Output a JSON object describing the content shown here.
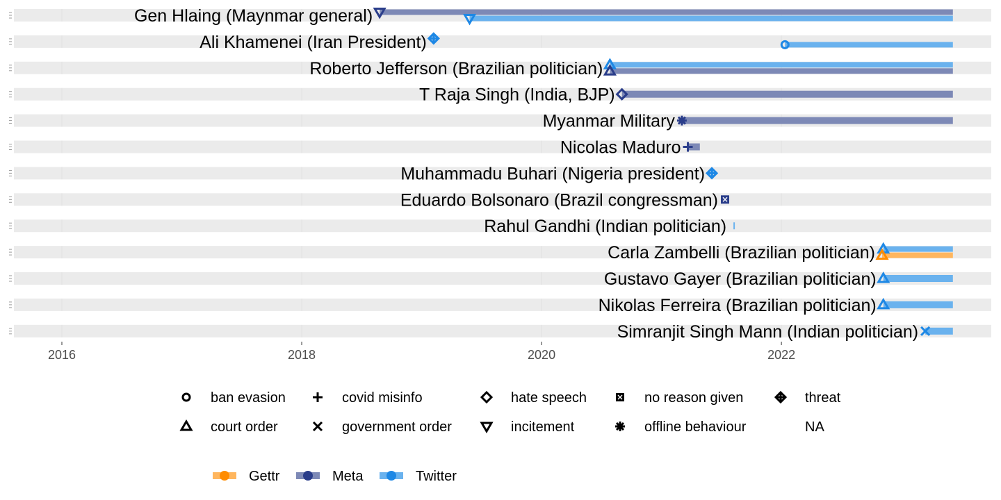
{
  "chart_data": {
    "type": "timeline",
    "x_range": [
      2015.6,
      2023.75
    ],
    "x_ticks": [
      "2016",
      "2018",
      "2020",
      "2022"
    ],
    "end": 2023.43,
    "platforms": [
      {
        "name": "Gettr",
        "color": "#FF8C00",
        "bar_color": "#FFB65E"
      },
      {
        "name": "Meta",
        "color": "#2A3D8A",
        "bar_color": "#7D89B6"
      },
      {
        "name": "Twitter",
        "color": "#1E88E5",
        "bar_color": "#6AB2EE"
      }
    ],
    "reasons": [
      {
        "name": "ban evasion",
        "shape": "circle"
      },
      {
        "name": "covid misinfo",
        "shape": "plus"
      },
      {
        "name": "hate speech",
        "shape": "diamond"
      },
      {
        "name": "no reason given",
        "shape": "boxx"
      },
      {
        "name": "threat",
        "shape": "diamondplus"
      },
      {
        "name": "court order",
        "shape": "triangle"
      },
      {
        "name": "government order",
        "shape": "cross"
      },
      {
        "name": "incitement",
        "shape": "triangledown"
      },
      {
        "name": "offline behaviour",
        "shape": "star"
      },
      {
        "name": "NA",
        "shape": "none"
      }
    ],
    "rows": [
      {
        "name": "Gen Hlaing (Maynmar general)",
        "events": [
          {
            "platform": "Meta",
            "start": 2018.65,
            "end": 2023.43,
            "reason": "incitement"
          },
          {
            "platform": "Twitter",
            "start": 2019.4,
            "end": 2023.43,
            "reason": "incitement"
          }
        ]
      },
      {
        "name": "Ali Khamenei (Iran President)",
        "events": [
          {
            "platform": "Twitter",
            "start": 2019.1,
            "end": 2019.1,
            "reason": "threat"
          },
          {
            "platform": "Twitter",
            "start": 2022.03,
            "end": 2023.43,
            "reason": "ban evasion"
          }
        ]
      },
      {
        "name": "Roberto Jefferson (Brazilian politician)",
        "events": [
          {
            "platform": "Twitter",
            "start": 2020.57,
            "end": 2023.43,
            "reason": "court order"
          },
          {
            "platform": "Meta",
            "start": 2020.57,
            "end": 2023.43,
            "reason": "court order"
          }
        ]
      },
      {
        "name": "T Raja Singh (India, BJP)",
        "events": [
          {
            "platform": "Meta",
            "start": 2020.67,
            "end": 2023.43,
            "reason": "hate speech"
          }
        ]
      },
      {
        "name": "Myanmar Military",
        "events": [
          {
            "platform": "Meta",
            "start": 2021.17,
            "end": 2023.43,
            "reason": "offline behaviour"
          }
        ]
      },
      {
        "name": "Nicolas Maduro",
        "events": [
          {
            "platform": "Meta",
            "start": 2021.22,
            "end": 2021.32,
            "reason": "covid misinfo"
          }
        ]
      },
      {
        "name": "Muhammadu Buhari (Nigeria president)",
        "events": [
          {
            "platform": "Twitter",
            "start": 2021.42,
            "end": 2021.42,
            "reason": "threat"
          }
        ]
      },
      {
        "name": "Eduardo Bolsonaro (Brazil congressman)",
        "events": [
          {
            "platform": "Meta",
            "start": 2021.53,
            "end": 2021.53,
            "reason": "no reason given"
          }
        ]
      },
      {
        "name": "Rahul Gandhi (Indian politician)",
        "events": [
          {
            "platform": "Twitter",
            "start": 2021.6,
            "end": 2021.61,
            "reason": "NA"
          }
        ]
      },
      {
        "name": "Carla Zambelli (Brazilian politician)",
        "events": [
          {
            "platform": "Twitter",
            "start": 2022.85,
            "end": 2023.43,
            "reason": "court order"
          },
          {
            "platform": "Gettr",
            "start": 2022.84,
            "end": 2023.43,
            "reason": "court order"
          }
        ]
      },
      {
        "name": "Gustavo Gayer (Brazilian politician)",
        "events": [
          {
            "platform": "Twitter",
            "start": 2022.85,
            "end": 2023.43,
            "reason": "court order"
          }
        ]
      },
      {
        "name": "Nikolas Ferreira (Brazilian politician)",
        "events": [
          {
            "platform": "Twitter",
            "start": 2022.85,
            "end": 2023.43,
            "reason": "court order"
          }
        ]
      },
      {
        "name": "Simranjit Singh Mann (Indian politician)",
        "events": [
          {
            "platform": "Twitter",
            "start": 2023.2,
            "end": 2023.43,
            "reason": "government order"
          }
        ]
      }
    ]
  }
}
